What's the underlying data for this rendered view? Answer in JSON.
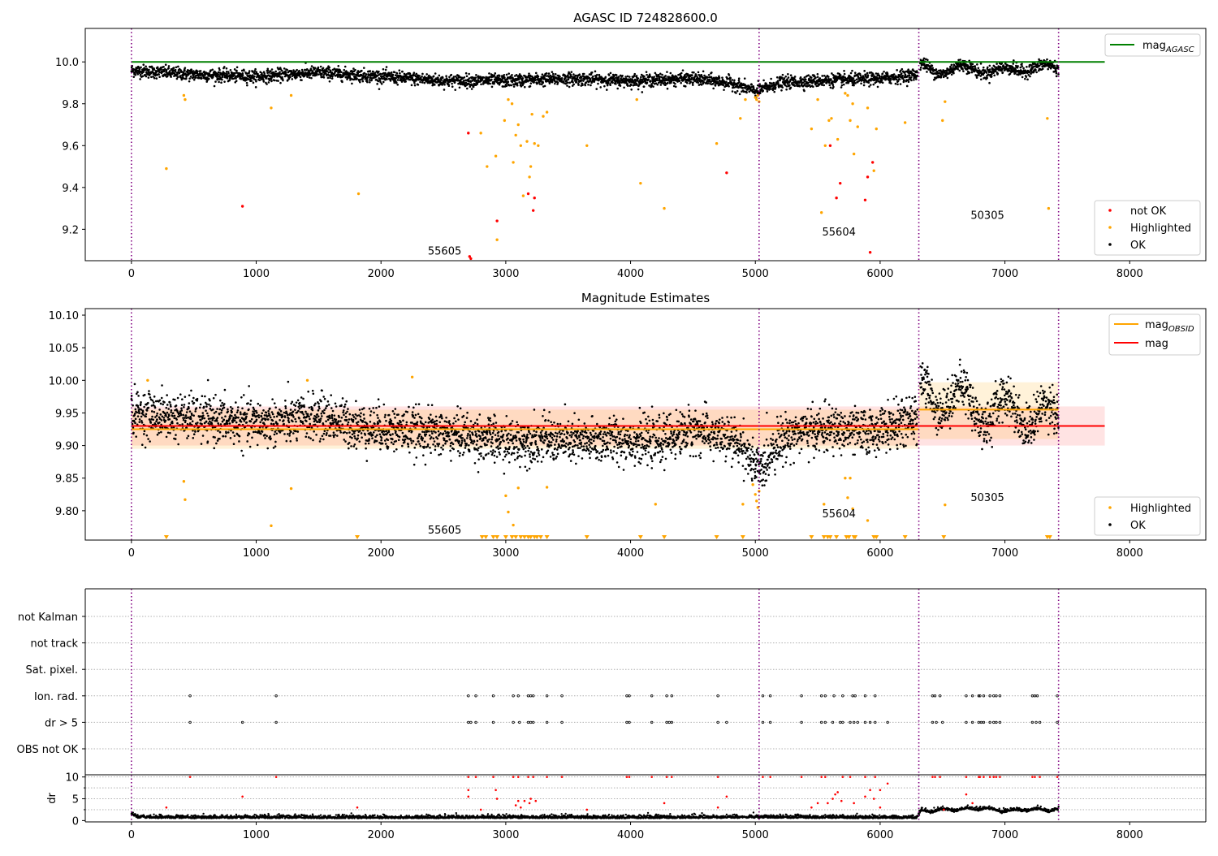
{
  "chart_data": [
    {
      "type": "scatter",
      "title": "AGASC ID 724828600.0",
      "xlim": [
        -370,
        8610
      ],
      "ylim": [
        9.05,
        10.16
      ],
      "xticks": [
        "0",
        "1000",
        "2000",
        "3000",
        "4000",
        "5000",
        "6000",
        "7000",
        "8000"
      ],
      "yticks": [
        "9.2",
        "9.4",
        "9.6",
        "9.8",
        "10.0"
      ],
      "obs_boundaries": [
        0,
        5030,
        6310,
        7430
      ],
      "mag_agasc": 10.0,
      "legend_position": "top-right",
      "legend": {
        "line": "mag",
        "line_sub": "AGASC",
        "points": [
          "not OK",
          "Highlighted",
          "OK"
        ]
      },
      "annotations": [
        {
          "text": "55605",
          "x": 2510,
          "y": 9.08
        },
        {
          "text": "55604",
          "x": 5670,
          "y": 9.17
        },
        {
          "text": "50305",
          "x": 6860,
          "y": 9.25
        }
      ],
      "ok_trend": [
        [
          0,
          9.96
        ],
        [
          500,
          9.94
        ],
        [
          1000,
          9.93
        ],
        [
          1500,
          9.95
        ],
        [
          2000,
          9.93
        ],
        [
          2500,
          9.91
        ],
        [
          3000,
          9.91
        ],
        [
          3500,
          9.92
        ],
        [
          4000,
          9.91
        ],
        [
          4500,
          9.92
        ],
        [
          4800,
          9.9
        ],
        [
          5000,
          9.86
        ],
        [
          5100,
          9.88
        ],
        [
          5200,
          9.9
        ],
        [
          5500,
          9.91
        ],
        [
          6000,
          9.92
        ],
        [
          6300,
          9.94
        ],
        [
          6310,
          9.98
        ],
        [
          6500,
          9.96
        ],
        [
          6800,
          9.97
        ],
        [
          7000,
          9.95
        ],
        [
          7200,
          9.98
        ],
        [
          7430,
          9.96
        ]
      ],
      "highlighted": [
        [
          280,
          9.49
        ],
        [
          420,
          9.84
        ],
        [
          430,
          9.82
        ],
        [
          1120,
          9.78
        ],
        [
          1280,
          9.84
        ],
        [
          1820,
          9.37
        ],
        [
          2800,
          9.66
        ],
        [
          2850,
          9.5
        ],
        [
          2920,
          9.55
        ],
        [
          2930,
          9.15
        ],
        [
          2990,
          9.72
        ],
        [
          3020,
          9.82
        ],
        [
          3050,
          9.8
        ],
        [
          3060,
          9.52
        ],
        [
          3080,
          9.65
        ],
        [
          3100,
          9.7
        ],
        [
          3120,
          9.6
        ],
        [
          3140,
          9.36
        ],
        [
          3170,
          9.62
        ],
        [
          3190,
          9.45
        ],
        [
          3200,
          9.5
        ],
        [
          3210,
          9.75
        ],
        [
          3230,
          9.61
        ],
        [
          3260,
          9.6
        ],
        [
          3300,
          9.74
        ],
        [
          3330,
          9.76
        ],
        [
          3650,
          9.6
        ],
        [
          4050,
          9.82
        ],
        [
          4080,
          9.42
        ],
        [
          4270,
          9.3
        ],
        [
          4690,
          9.61
        ],
        [
          4880,
          9.73
        ],
        [
          4920,
          9.82
        ],
        [
          5000,
          9.83
        ],
        [
          5010,
          9.82
        ],
        [
          5020,
          9.84
        ],
        [
          5030,
          9.81
        ],
        [
          5450,
          9.68
        ],
        [
          5500,
          9.82
        ],
        [
          5530,
          9.28
        ],
        [
          5560,
          9.6
        ],
        [
          5590,
          9.72
        ],
        [
          5610,
          9.73
        ],
        [
          5660,
          9.63
        ],
        [
          5720,
          9.85
        ],
        [
          5740,
          9.84
        ],
        [
          5760,
          9.72
        ],
        [
          5780,
          9.8
        ],
        [
          5790,
          9.56
        ],
        [
          5820,
          9.69
        ],
        [
          5900,
          9.78
        ],
        [
          5950,
          9.48
        ],
        [
          5970,
          9.68
        ],
        [
          6200,
          9.71
        ],
        [
          6500,
          9.72
        ],
        [
          6520,
          9.81
        ],
        [
          7340,
          9.73
        ],
        [
          7350,
          9.3
        ]
      ],
      "not_ok": [
        [
          890,
          9.31
        ],
        [
          2700,
          9.66
        ],
        [
          2710,
          9.07
        ],
        [
          2720,
          9.06
        ],
        [
          2930,
          9.24
        ],
        [
          3180,
          9.37
        ],
        [
          3220,
          9.29
        ],
        [
          3230,
          9.35
        ],
        [
          4770,
          9.47
        ],
        [
          5600,
          9.6
        ],
        [
          5650,
          9.35
        ],
        [
          5680,
          9.42
        ],
        [
          5880,
          9.34
        ],
        [
          5900,
          9.45
        ],
        [
          5920,
          9.09
        ],
        [
          5940,
          9.52
        ]
      ]
    },
    {
      "type": "scatter",
      "title": "Magnitude Estimates",
      "xlim": [
        -370,
        8610
      ],
      "ylim": [
        9.755,
        10.11
      ],
      "xticks": [
        "0",
        "1000",
        "2000",
        "3000",
        "4000",
        "5000",
        "6000",
        "7000",
        "8000"
      ],
      "yticks": [
        "9.80",
        "9.85",
        "9.90",
        "9.95",
        "10.00",
        "10.05",
        "10.10"
      ],
      "obs_boundaries": [
        0,
        5030,
        6310,
        7430
      ],
      "mag": 9.93,
      "mag_band": [
        9.9,
        9.96
      ],
      "mag_obsid": [
        {
          "x": [
            0,
            6310
          ],
          "value": 9.925,
          "band": [
            9.895,
            9.955
          ]
        },
        {
          "x": [
            6310,
            7430
          ],
          "value": 9.955,
          "band": [
            9.91,
            9.997
          ]
        }
      ],
      "legend_position": "top-right",
      "legend": {
        "lines": [
          {
            "name": "mag",
            "sub": "OBSID"
          },
          {
            "name": "mag",
            "sub": ""
          }
        ],
        "points": [
          "Highlighted",
          "OK"
        ]
      },
      "annotations": [
        {
          "text": "55605",
          "x": 2510,
          "y": 9.765
        },
        {
          "text": "55604",
          "x": 5670,
          "y": 9.79
        },
        {
          "text": "50305",
          "x": 6860,
          "y": 9.815
        }
      ],
      "ok_trend": [
        [
          0,
          9.95
        ],
        [
          300,
          9.945
        ],
        [
          600,
          9.94
        ],
        [
          900,
          9.935
        ],
        [
          1200,
          9.935
        ],
        [
          1500,
          9.945
        ],
        [
          1800,
          9.93
        ],
        [
          2100,
          9.925
        ],
        [
          2400,
          9.92
        ],
        [
          2700,
          9.915
        ],
        [
          3000,
          9.905
        ],
        [
          3300,
          9.91
        ],
        [
          3600,
          9.905
        ],
        [
          3900,
          9.91
        ],
        [
          4200,
          9.905
        ],
        [
          4500,
          9.925
        ],
        [
          4700,
          9.915
        ],
        [
          4900,
          9.9
        ],
        [
          5000,
          9.865
        ],
        [
          5060,
          9.865
        ],
        [
          5150,
          9.9
        ],
        [
          5300,
          9.92
        ],
        [
          5600,
          9.925
        ],
        [
          5900,
          9.92
        ],
        [
          6200,
          9.935
        ],
        [
          6310,
          9.94
        ],
        [
          6320,
          9.985
        ],
        [
          6500,
          9.975
        ],
        [
          6700,
          9.965
        ],
        [
          6900,
          9.95
        ],
        [
          7100,
          9.955
        ],
        [
          7300,
          9.945
        ],
        [
          7430,
          9.94
        ]
      ],
      "highlighted": [
        [
          130,
          10.0
        ],
        [
          420,
          9.845
        ],
        [
          430,
          9.817
        ],
        [
          1120,
          9.777
        ],
        [
          1280,
          9.834
        ],
        [
          1410,
          10.0
        ],
        [
          2250,
          10.005
        ],
        [
          3000,
          9.823
        ],
        [
          3020,
          9.798
        ],
        [
          3060,
          9.778
        ],
        [
          3100,
          9.835
        ],
        [
          3330,
          9.836
        ],
        [
          4200,
          9.81
        ],
        [
          4900,
          9.81
        ],
        [
          4980,
          9.84
        ],
        [
          5000,
          9.825
        ],
        [
          5010,
          9.815
        ],
        [
          5020,
          9.805
        ],
        [
          5030,
          9.83
        ],
        [
          5550,
          9.81
        ],
        [
          5720,
          9.85
        ],
        [
          5740,
          9.82
        ],
        [
          5760,
          9.85
        ],
        [
          5780,
          9.803
        ],
        [
          5900,
          9.785
        ],
        [
          6520,
          9.809
        ]
      ],
      "floor_markers": [
        280,
        1810,
        2810,
        2840,
        2900,
        2930,
        3000,
        3050,
        3080,
        3120,
        3150,
        3180,
        3200,
        3230,
        3250,
        3280,
        3330,
        3650,
        4080,
        4270,
        4690,
        4900,
        5450,
        5550,
        5580,
        5600,
        5650,
        5730,
        5750,
        5790,
        5800,
        5950,
        5970,
        6200,
        6510,
        7340,
        7360
      ]
    },
    {
      "type": "scatter",
      "title": "",
      "xlim": [
        -370,
        8610
      ],
      "category_labels": [
        "not Kalman",
        "not track",
        "Sat. pixel.",
        "Ion. rad.",
        "dr > 5",
        "OBS not OK"
      ],
      "obs_boundaries": [
        0,
        5030,
        6310,
        7430
      ],
      "flags": {
        "Ion. rad.": [
          470,
          1160,
          2700,
          2760,
          2900,
          3060,
          3100,
          3180,
          3200,
          3220,
          3330,
          3450,
          3970,
          3990,
          4170,
          4290,
          4330,
          4700,
          5060,
          5120,
          5370,
          5530,
          5560,
          5630,
          5700,
          5780,
          5800,
          5880,
          5960,
          6420,
          6440,
          6480,
          6690,
          6740,
          6790,
          6800,
          6830,
          6880,
          6910,
          6930,
          6960,
          7220,
          7240,
          7260,
          7420
        ],
        "dr > 5": [
          470,
          890,
          1160,
          2700,
          2720,
          2760,
          2900,
          3060,
          3110,
          3180,
          3200,
          3220,
          3330,
          3450,
          3970,
          3990,
          4170,
          4290,
          4310,
          4330,
          4700,
          4770,
          5060,
          5120,
          5370,
          5530,
          5560,
          5620,
          5680,
          5700,
          5760,
          5790,
          5820,
          5880,
          5920,
          5960,
          6060,
          6420,
          6450,
          6500,
          6690,
          6740,
          6790,
          6810,
          6830,
          6880,
          6910,
          6930,
          6960,
          7220,
          7250,
          7280,
          7420
        ]
      }
    },
    {
      "type": "scatter",
      "title": "",
      "xlim": [
        -370,
        8610
      ],
      "ylim": [
        -0.3,
        10.5
      ],
      "ylabel": "dr",
      "yticks": [
        "0",
        "5",
        "10"
      ],
      "xticks": [
        "0",
        "1000",
        "2000",
        "3000",
        "4000",
        "5000",
        "6000",
        "7000",
        "8000"
      ],
      "obs_boundaries": [
        0,
        5030,
        6310,
        7430
      ],
      "dr_trend": [
        [
          0,
          1.5
        ],
        [
          50,
          0.6
        ],
        [
          500,
          0.5
        ],
        [
          1000,
          0.55
        ],
        [
          2000,
          0.5
        ],
        [
          3000,
          0.55
        ],
        [
          4000,
          0.5
        ],
        [
          5000,
          0.6
        ],
        [
          6000,
          0.5
        ],
        [
          6300,
          0.5
        ],
        [
          6320,
          1.5
        ],
        [
          6500,
          1.8
        ],
        [
          6800,
          2.2
        ],
        [
          7000,
          1.6
        ],
        [
          7200,
          1.9
        ],
        [
          7430,
          1.8
        ]
      ],
      "not_ok": [
        [
          280,
          3
        ],
        [
          470,
          10
        ],
        [
          890,
          5.5
        ],
        [
          1160,
          10
        ],
        [
          1810,
          3
        ],
        [
          2700,
          10
        ],
        [
          2700,
          7
        ],
        [
          2700,
          5.5
        ],
        [
          2760,
          10
        ],
        [
          2800,
          2.5
        ],
        [
          2900,
          10
        ],
        [
          2920,
          7
        ],
        [
          2930,
          5
        ],
        [
          3060,
          10
        ],
        [
          3080,
          3.5
        ],
        [
          3100,
          4.5
        ],
        [
          3100,
          10
        ],
        [
          3120,
          3
        ],
        [
          3150,
          4.5
        ],
        [
          3180,
          10
        ],
        [
          3190,
          4
        ],
        [
          3200,
          5
        ],
        [
          3220,
          10
        ],
        [
          3240,
          4.5
        ],
        [
          3330,
          10
        ],
        [
          3450,
          10
        ],
        [
          3650,
          2.5
        ],
        [
          3970,
          10
        ],
        [
          3990,
          10
        ],
        [
          4170,
          10
        ],
        [
          4270,
          4
        ],
        [
          4290,
          10
        ],
        [
          4330,
          10
        ],
        [
          4700,
          10
        ],
        [
          4700,
          3
        ],
        [
          4770,
          5.5
        ],
        [
          5060,
          10
        ],
        [
          5120,
          10
        ],
        [
          5370,
          10
        ],
        [
          5450,
          3
        ],
        [
          5500,
          4
        ],
        [
          5530,
          10
        ],
        [
          5560,
          10
        ],
        [
          5580,
          4
        ],
        [
          5620,
          5
        ],
        [
          5640,
          6
        ],
        [
          5660,
          6.5
        ],
        [
          5690,
          4.5
        ],
        [
          5700,
          10
        ],
        [
          5760,
          10
        ],
        [
          5790,
          4
        ],
        [
          5880,
          10
        ],
        [
          5880,
          5.5
        ],
        [
          5920,
          7
        ],
        [
          5950,
          5
        ],
        [
          5960,
          10
        ],
        [
          6000,
          3
        ],
        [
          6060,
          8.5
        ],
        [
          6000,
          7
        ],
        [
          6420,
          10
        ],
        [
          6440,
          10
        ],
        [
          6480,
          10
        ],
        [
          6510,
          2.5
        ],
        [
          6690,
          10
        ],
        [
          6690,
          6
        ],
        [
          6740,
          4
        ],
        [
          6790,
          10
        ],
        [
          6800,
          10
        ],
        [
          6830,
          10
        ],
        [
          6880,
          10
        ],
        [
          6910,
          10
        ],
        [
          6930,
          10
        ],
        [
          6960,
          10
        ],
        [
          7220,
          10
        ],
        [
          7240,
          10
        ],
        [
          7280,
          10
        ],
        [
          7420,
          10
        ]
      ]
    }
  ]
}
